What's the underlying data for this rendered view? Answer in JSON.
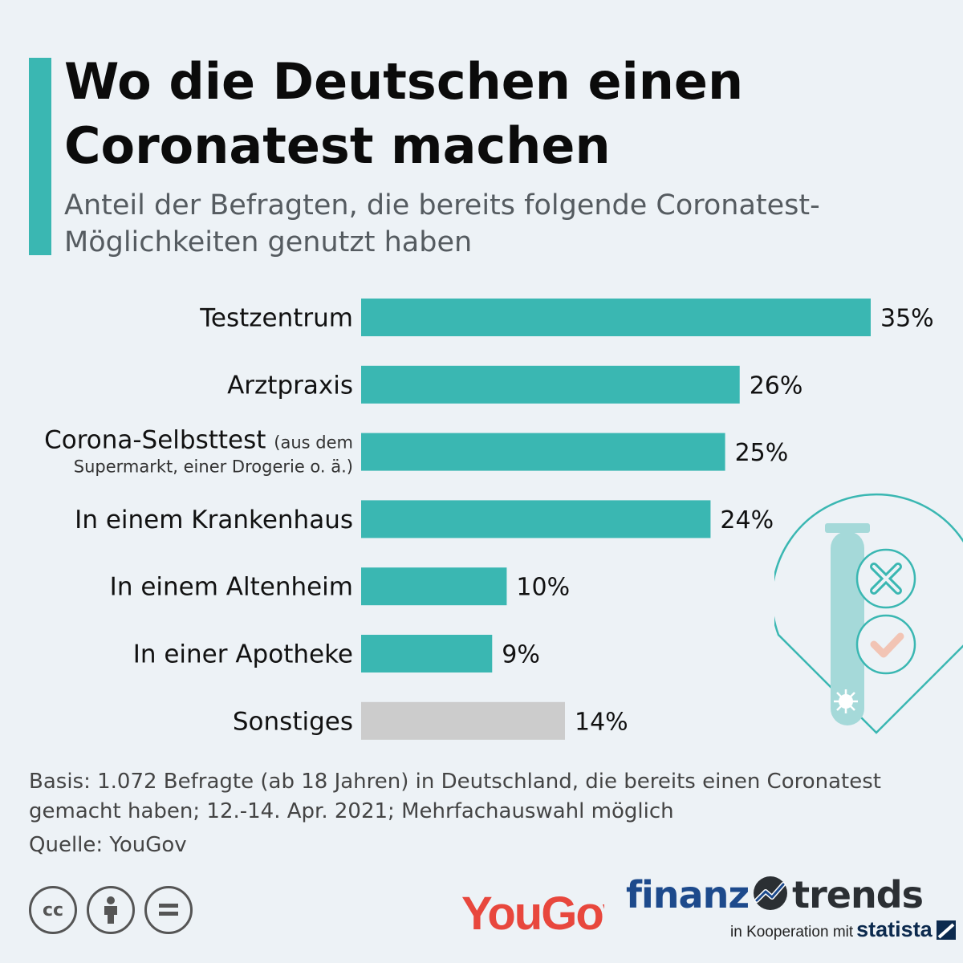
{
  "header": {
    "title": "Wo die Deutschen einen Coronatest machen",
    "subtitle": "Anteil der Befragten, die bereits folgende Coronatest-Möglichkeiten genutzt haben"
  },
  "chart_data": {
    "type": "bar",
    "orientation": "horizontal",
    "categories": [
      "Testzentrum",
      "Arztpraxis",
      "Corona-Selbsttest (aus dem Supermarkt, einer Drogerie o. ä.)",
      "In einem Krankenhaus",
      "In einem Altenheim",
      "In einer Apotheke",
      "Sonstiges"
    ],
    "category_display": [
      {
        "main": "Testzentrum"
      },
      {
        "main": "Arztpraxis"
      },
      {
        "main": "Corona-Selbsttest",
        "suffix": "(aus dem",
        "line2": "Supermarkt, einer Drogerie o. ä.)"
      },
      {
        "main": "In einem Krankenhaus"
      },
      {
        "main": "In einem Altenheim"
      },
      {
        "main": "In einer Apotheke"
      },
      {
        "main": "Sonstiges"
      }
    ],
    "values": [
      35,
      26,
      25,
      24,
      10,
      9,
      14
    ],
    "value_labels": [
      "35%",
      "26%",
      "25%",
      "24%",
      "10%",
      "9%",
      "14%"
    ],
    "unit": "%",
    "xlim": [
      0,
      35
    ],
    "bar_colors": [
      "#3ab7b2",
      "#3ab7b2",
      "#3ab7b2",
      "#3ab7b2",
      "#3ab7b2",
      "#3ab7b2",
      "#cccccc"
    ],
    "grid": false,
    "legend": "none"
  },
  "footnote": {
    "basis": "Basis: 1.072 Befragte (ab 18 Jahren) in Deutschland, die bereits einen Coronatest gemacht haben; 12.-14. Apr. 2021; Mehrfachauswahl möglich",
    "source": "Quelle: YouGov"
  },
  "branding": {
    "cc_icons": [
      "cc-icon",
      "attribution-icon",
      "no-derivatives-icon"
    ],
    "cc_text": "cc",
    "yougov": "YouGov",
    "finanz": "finanz",
    "trends": "trends",
    "kooperation": "in Kooperation mit",
    "statista": "statista"
  },
  "colors": {
    "accent": "#3ab7b2",
    "other_bar": "#cccccc",
    "background": "#edf2f6",
    "yougov_red": "#e8473d",
    "finanz_blue": "#1d4a8c"
  }
}
